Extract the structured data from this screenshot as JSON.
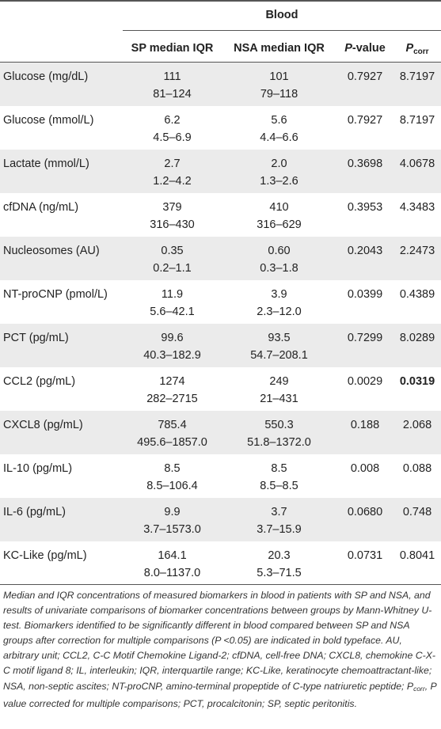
{
  "table": {
    "group_title": "Blood",
    "headers": {
      "sp": "SP median IQR",
      "nsa": "NSA median IQR",
      "p_italic": "P",
      "p_rest": "-value",
      "pcorr_main": "P",
      "pcorr_sub": "corr"
    },
    "rows": [
      {
        "label": "Glucose (mg/dL)",
        "sp_median": "111",
        "sp_iqr": "81–124",
        "nsa_median": "101",
        "nsa_iqr": "79–118",
        "p": "0.7927",
        "pcorr": "8.7197",
        "pcorr_bold": false
      },
      {
        "label": "Glucose (mmol/L)",
        "sp_median": "6.2",
        "sp_iqr": "4.5–6.9",
        "nsa_median": "5.6",
        "nsa_iqr": "4.4–6.6",
        "p": "0.7927",
        "pcorr": "8.7197",
        "pcorr_bold": false
      },
      {
        "label": "Lactate (mmol/L)",
        "sp_median": "2.7",
        "sp_iqr": "1.2–4.2",
        "nsa_median": "2.0",
        "nsa_iqr": "1.3–2.6",
        "p": "0.3698",
        "pcorr": "4.0678",
        "pcorr_bold": false
      },
      {
        "label": "cfDNA (ng/mL)",
        "sp_median": "379",
        "sp_iqr": "316–430",
        "nsa_median": "410",
        "nsa_iqr": "316–629",
        "p": "0.3953",
        "pcorr": "4.3483",
        "pcorr_bold": false
      },
      {
        "label": "Nucleosomes (AU)",
        "sp_median": "0.35",
        "sp_iqr": "0.2–1.1",
        "nsa_median": "0.60",
        "nsa_iqr": "0.3–1.8",
        "p": "0.2043",
        "pcorr": "2.2473",
        "pcorr_bold": false
      },
      {
        "label": "NT-proCNP (pmol/L)",
        "sp_median": "11.9",
        "sp_iqr": "5.6–42.1",
        "nsa_median": "3.9",
        "nsa_iqr": "2.3–12.0",
        "p": "0.0399",
        "pcorr": "0.4389",
        "pcorr_bold": false
      },
      {
        "label": "PCT (pg/mL)",
        "sp_median": "99.6",
        "sp_iqr": "40.3–182.9",
        "nsa_median": "93.5",
        "nsa_iqr": "54.7–208.1",
        "p": "0.7299",
        "pcorr": "8.0289",
        "pcorr_bold": false
      },
      {
        "label": "CCL2 (pg/mL)",
        "sp_median": "1274",
        "sp_iqr": "282–2715",
        "nsa_median": "249",
        "nsa_iqr": "21–431",
        "p": "0.0029",
        "pcorr": "0.0319",
        "pcorr_bold": true
      },
      {
        "label": "CXCL8 (pg/mL)",
        "sp_median": "785.4",
        "sp_iqr": "495.6–1857.0",
        "nsa_median": "550.3",
        "nsa_iqr": "51.8–1372.0",
        "p": "0.188",
        "pcorr": "2.068",
        "pcorr_bold": false
      },
      {
        "label": "IL-10 (pg/mL)",
        "sp_median": "8.5",
        "sp_iqr": "8.5–106.4",
        "nsa_median": "8.5",
        "nsa_iqr": "8.5–8.5",
        "p": "0.008",
        "pcorr": "0.088",
        "pcorr_bold": false
      },
      {
        "label": "IL-6 (pg/mL)",
        "sp_median": "9.9",
        "sp_iqr": "3.7–1573.0",
        "nsa_median": "3.7",
        "nsa_iqr": "3.7–15.9",
        "p": "0.0680",
        "pcorr": "0.748",
        "pcorr_bold": false
      },
      {
        "label": "KC-Like (pg/mL)",
        "sp_median": "164.1",
        "sp_iqr": "8.0–1137.0",
        "nsa_median": "20.3",
        "nsa_iqr": "5.3–71.5",
        "p": "0.0731",
        "pcorr": "0.8041",
        "pcorr_bold": false
      }
    ]
  },
  "footnote": {
    "part1": "Median and IQR concentrations of measured biomarkers in blood in patients with SP and NSA, and results of univariate comparisons of biomarker concentrations between groups by Mann-Whitney U-test. Biomarkers identified to be significantly different in blood compared between SP and NSA groups after correction for multiple comparisons (P <0.05) are indicated in bold typeface. AU, arbitrary unit; CCL2, C-C Motif Chemokine Ligand-2; cfDNA, cell-free DNA; CXCL8, chemokine C-X-C motif ligand 8; IL, interleukin; IQR, interquartile range; KC-Like, keratinocyte chemoattractant-like; NSA, non-septic ascites; NT-proCNP, amino-terminal propeptide of C-type natriuretic peptide; P",
    "part1_sub": "corr",
    "part2": ", P value corrected for multiple comparisons; PCT, procalcitonin; SP, septic peritonitis."
  }
}
